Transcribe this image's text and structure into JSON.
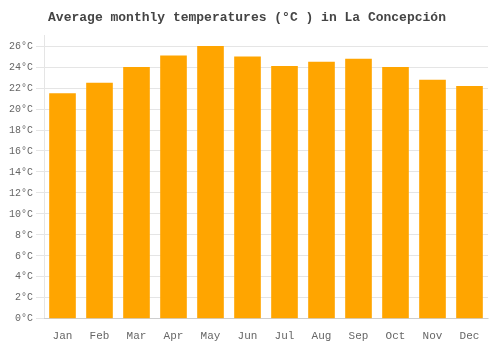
{
  "chart_data": {
    "type": "bar",
    "title": "Average monthly temperatures (°C ) in La Concepción",
    "categories": [
      "Jan",
      "Feb",
      "Mar",
      "Apr",
      "May",
      "Jun",
      "Jul",
      "Aug",
      "Sep",
      "Oct",
      "Nov",
      "Dec"
    ],
    "values": [
      21.5,
      22.5,
      24.0,
      25.1,
      26.0,
      25.0,
      24.1,
      24.5,
      24.8,
      24.0,
      22.8,
      22.2
    ],
    "color": "#FFA500",
    "ylim": [
      0,
      27
    ],
    "yticks": [
      {
        "value": 0,
        "label": "0°C"
      },
      {
        "value": 2,
        "label": "2°C"
      },
      {
        "value": 4,
        "label": "4°C"
      },
      {
        "value": 6,
        "label": "6°C"
      },
      {
        "value": 8,
        "label": "8°C"
      },
      {
        "value": 10,
        "label": "10°C"
      },
      {
        "value": 12,
        "label": "12°C"
      },
      {
        "value": 14,
        "label": "14°C"
      },
      {
        "value": 16,
        "label": "16°C"
      },
      {
        "value": 18,
        "label": "18°C"
      },
      {
        "value": 20,
        "label": "20°C"
      },
      {
        "value": 22,
        "label": "22°C"
      },
      {
        "value": 24,
        "label": "24°C"
      },
      {
        "value": 26,
        "label": "26°C"
      }
    ],
    "grid": true
  }
}
